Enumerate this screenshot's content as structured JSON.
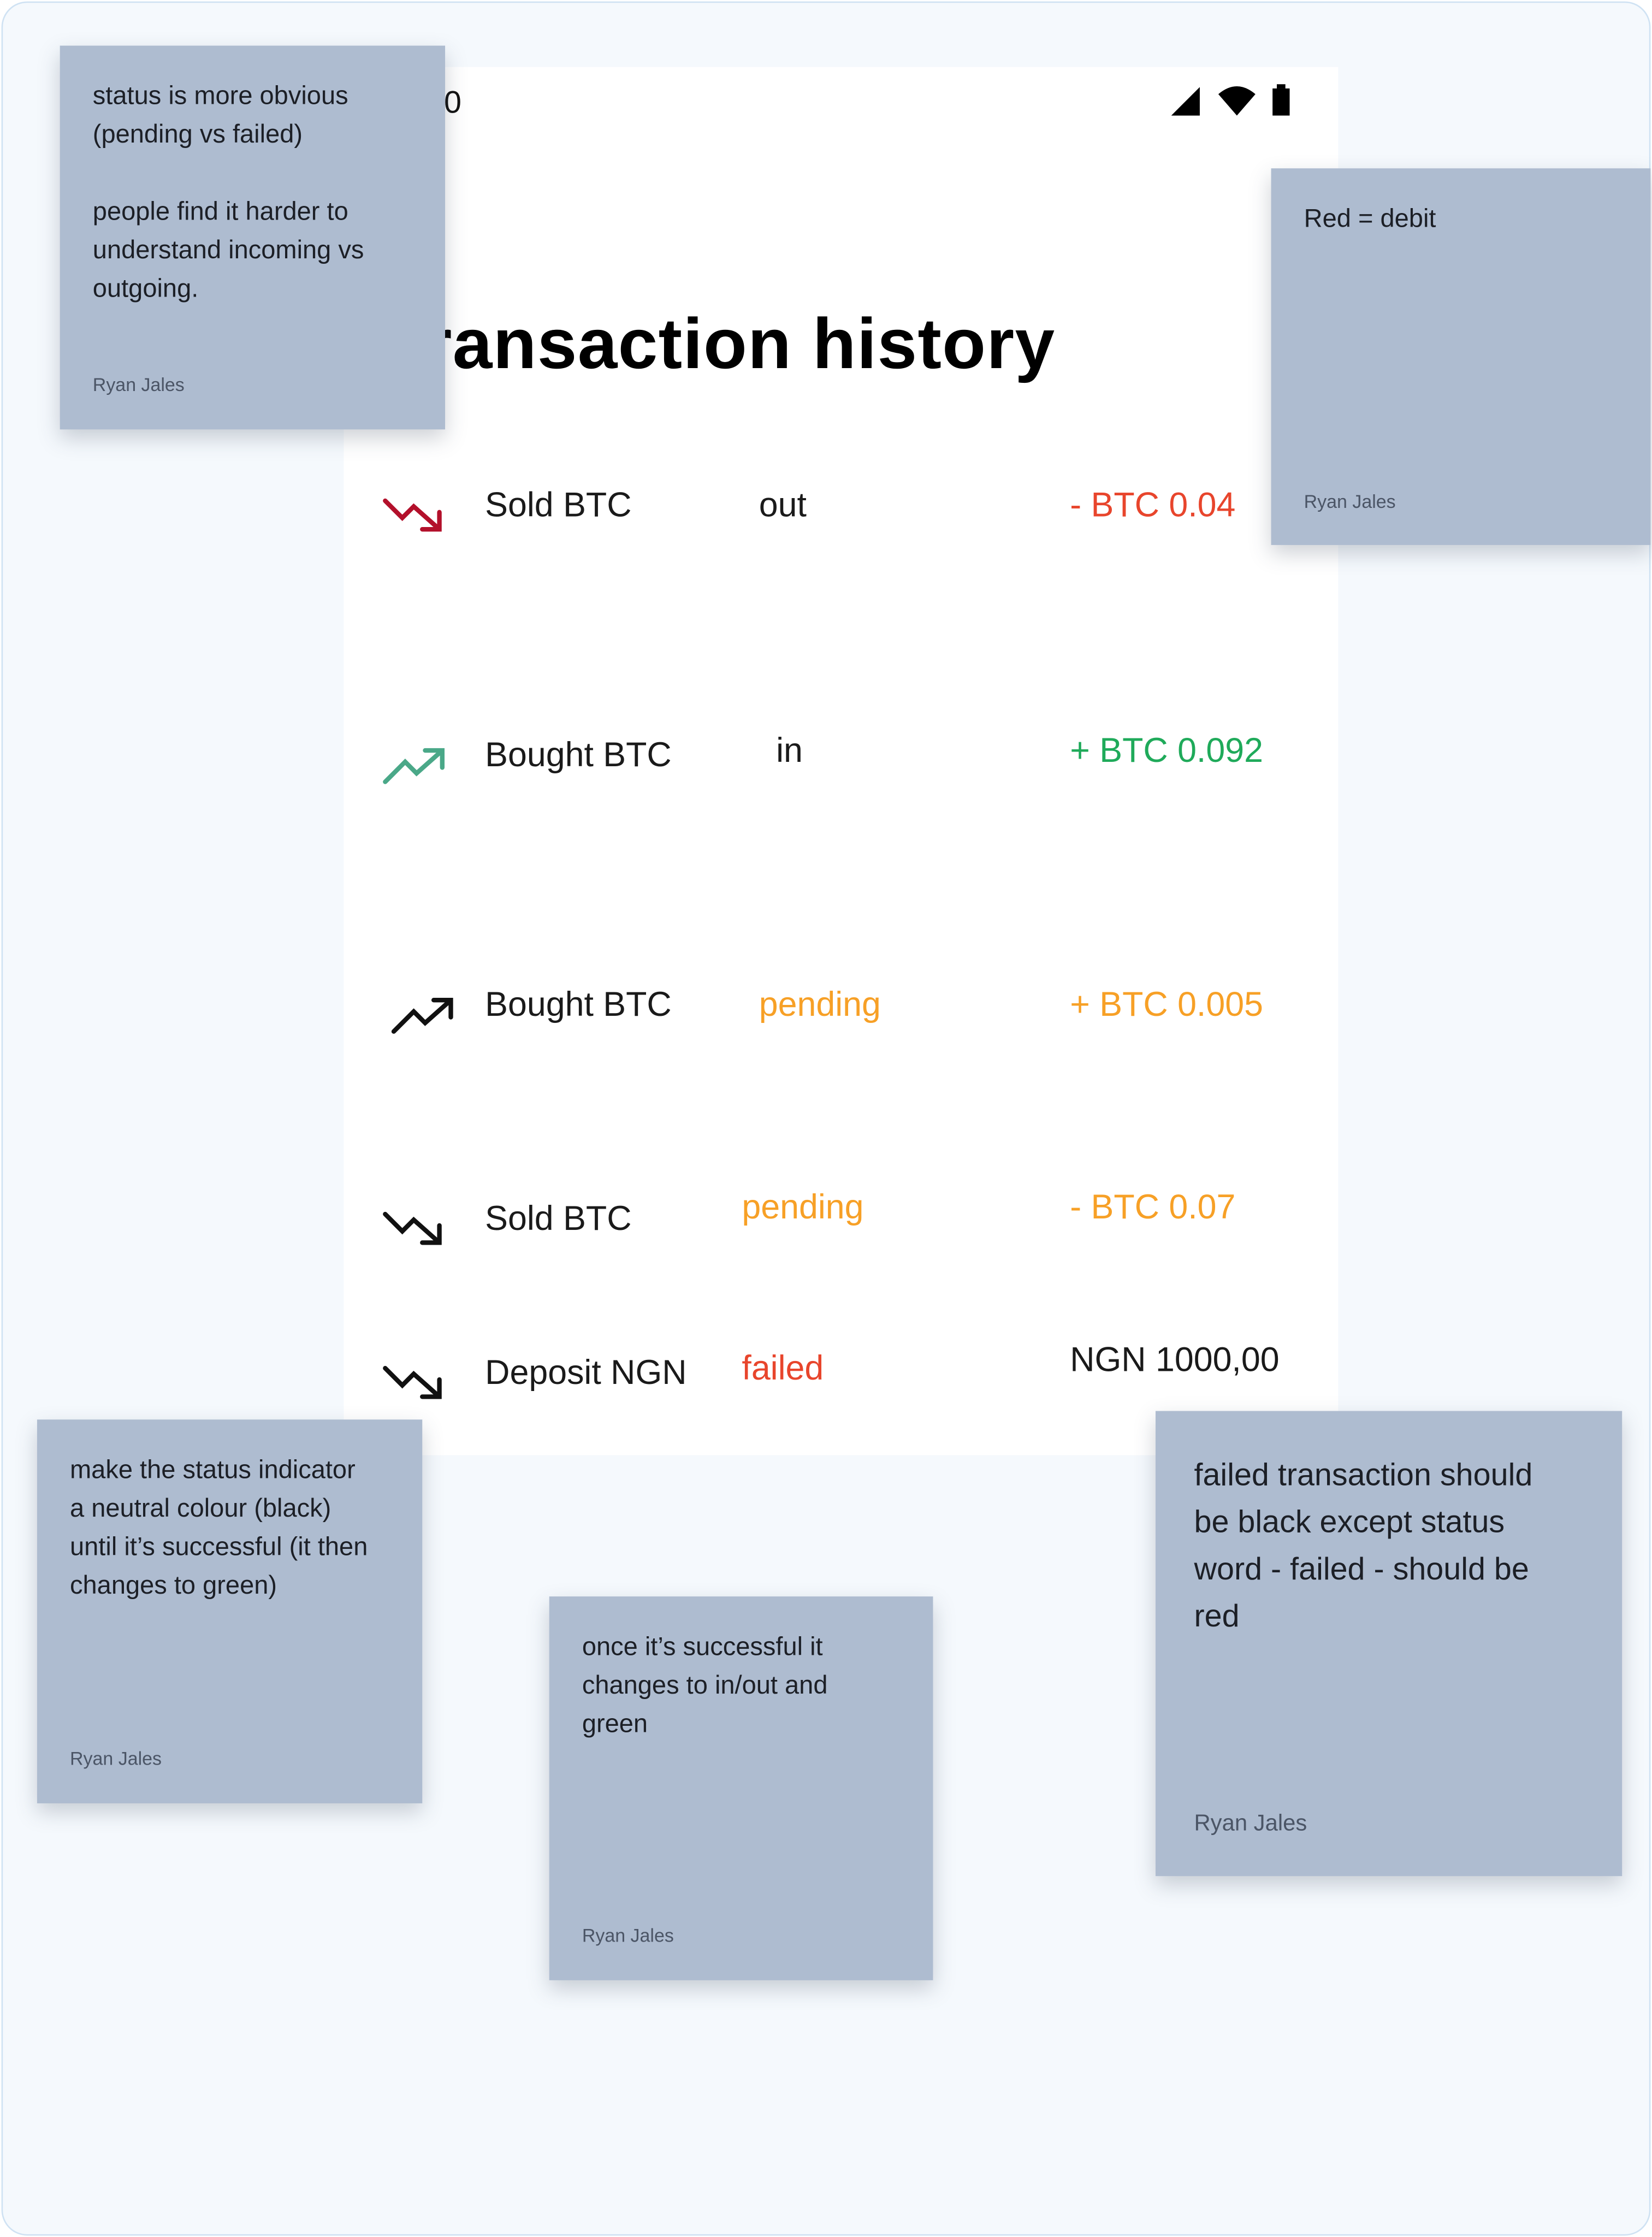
{
  "status_bar": {
    "time": "00",
    "icons": [
      "cellular-signal-icon",
      "wifi-icon",
      "battery-icon"
    ]
  },
  "page": {
    "title": "Transaction history",
    "back_icon": "back-arrow-icon"
  },
  "colors": {
    "debit": "#e8452c",
    "credit": "#1faa5a",
    "pending": "#f7a026",
    "failed": "#e8452c",
    "sticky": "#aebcd0",
    "background": "#f5f9fd"
  },
  "transactions": [
    {
      "icon": "trend-down-icon",
      "icon_color": "#b3102b",
      "name": "Sold BTC",
      "status": "out",
      "status_color": "#1a1a1a",
      "amount": "- BTC 0.04",
      "amount_color": "#e8452c"
    },
    {
      "icon": "trend-up-icon",
      "icon_color": "#4aa888",
      "name": "Bought BTC",
      "status": "in",
      "status_color": "#1a1a1a",
      "amount": "+ BTC 0.092",
      "amount_color": "#1faa5a"
    },
    {
      "icon": "trend-up-icon",
      "icon_color": "#111111",
      "name": "Bought BTC",
      "status": "pending",
      "status_color": "#f7a026",
      "amount": "+ BTC 0.005",
      "amount_color": "#f7a026"
    },
    {
      "icon": "trend-down-icon",
      "icon_color": "#111111",
      "name": "Sold BTC",
      "status": "pending",
      "status_color": "#f7a026",
      "amount": "- BTC 0.07",
      "amount_color": "#f7a026"
    },
    {
      "icon": "trend-down-icon",
      "icon_color": "#111111",
      "name": "Deposit NGN",
      "status": "failed",
      "status_color": "#e8452c",
      "amount": "NGN 1000,00",
      "amount_color": "#1a1a1a"
    }
  ],
  "stickies": [
    {
      "text": "status is more obvious\n(pending vs failed)\n\npeople find it harder to\nunderstand incoming vs\noutgoing.",
      "author": "Ryan Jales"
    },
    {
      "text": "Red = debit",
      "author": "Ryan Jales"
    },
    {
      "text": "make the status indicator\na neutral colour (black)\nuntil it’s successful (it then\nchanges to green)",
      "author": "Ryan Jales"
    },
    {
      "text": "once it’s successful it\nchanges to in/out and\ngreen",
      "author": "Ryan Jales"
    },
    {
      "text": "failed transaction should\nbe black except status\nword - failed - should be\nred",
      "author": "Ryan Jales"
    }
  ]
}
